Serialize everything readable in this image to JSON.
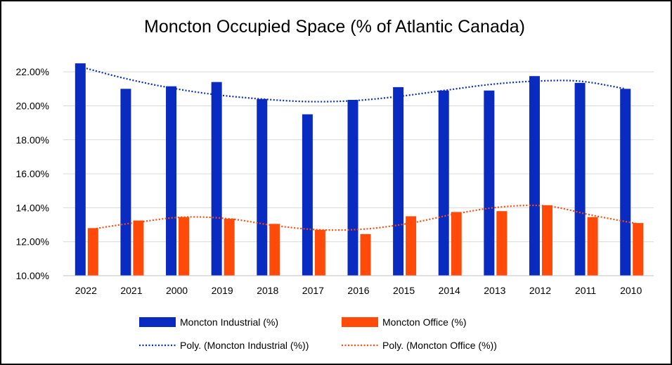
{
  "chart_data": {
    "type": "bar",
    "title": "Moncton Occupied Space (% of Atlantic Canada)",
    "categories": [
      "2022",
      "2021",
      "2000",
      "2019",
      "2018",
      "2017",
      "2016",
      "2015",
      "2014",
      "2013",
      "2012",
      "2011",
      "2010"
    ],
    "series": [
      {
        "name": "Moncton Industrial (%)",
        "color": "#0a2bbf",
        "values": [
          22.5,
          21.0,
          21.15,
          21.4,
          20.4,
          19.5,
          20.35,
          21.1,
          20.9,
          20.9,
          21.75,
          21.35,
          21.0
        ]
      },
      {
        "name": "Moncton Office (%)",
        "color": "#ff4a0a",
        "values": [
          12.8,
          13.25,
          13.45,
          13.35,
          13.05,
          12.7,
          12.45,
          13.5,
          13.75,
          13.8,
          14.15,
          13.45,
          13.1
        ]
      }
    ],
    "trendlines": [
      {
        "name": "Poly. (Moncton Industrial (%))",
        "color": "#0a2bbf",
        "values": [
          22.3,
          21.6,
          21.05,
          20.65,
          20.4,
          20.25,
          20.3,
          20.55,
          20.9,
          21.25,
          21.45,
          21.45,
          21.0
        ]
      },
      {
        "name": "Poly. (Moncton Office (%))",
        "color": "#ff4a0a",
        "values": [
          12.75,
          13.15,
          13.45,
          13.35,
          12.95,
          12.7,
          12.75,
          13.1,
          13.65,
          14.05,
          14.1,
          13.55,
          13.05
        ]
      }
    ],
    "ylim": [
      10,
      23
    ],
    "yticks": [
      "10.00%",
      "12.00%",
      "14.00%",
      "16.00%",
      "18.00%",
      "20.00%",
      "22.00%"
    ],
    "ytick_values": [
      10,
      12,
      14,
      16,
      18,
      20,
      22
    ],
    "grid": true,
    "legend_position": "bottom"
  }
}
